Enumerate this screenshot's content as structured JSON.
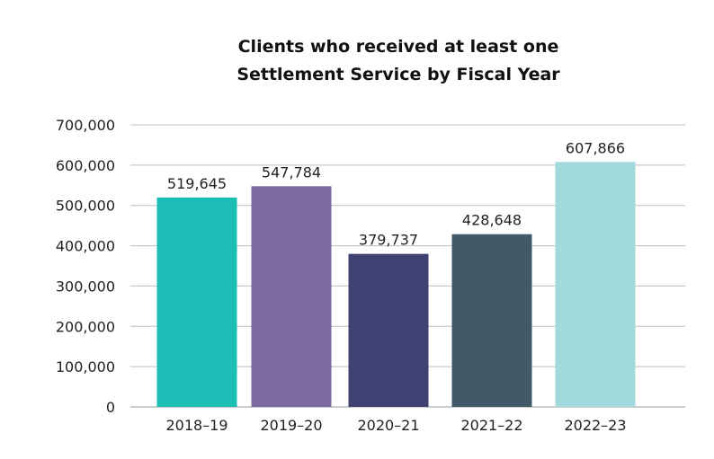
{
  "chart_data": {
    "type": "bar",
    "title_lines": [
      "Clients who received at least one",
      "Settlement Service by Fiscal Year"
    ],
    "xlabel": "",
    "ylabel": "",
    "categories": [
      "2018–19",
      "2019–20",
      "2020–21",
      "2021–22",
      "2022–23"
    ],
    "values": [
      519645,
      547784,
      379737,
      428648,
      607866
    ],
    "data_labels": [
      "519,645",
      "547,784",
      "379,737",
      "428,648",
      "607,866"
    ],
    "colors": [
      "#1BBDB4",
      "#7B6BA0",
      "#3E4172",
      "#415A67",
      "#A1D9DC"
    ],
    "ylim": [
      0,
      700000
    ],
    "yticks": [
      0,
      100000,
      200000,
      300000,
      400000,
      500000,
      600000,
      700000
    ],
    "ytick_labels": [
      "0",
      "100,000",
      "200,000",
      "300,000",
      "400,000",
      "500,000",
      "600,000",
      "700,000"
    ],
    "grid": true,
    "legend": "none"
  }
}
